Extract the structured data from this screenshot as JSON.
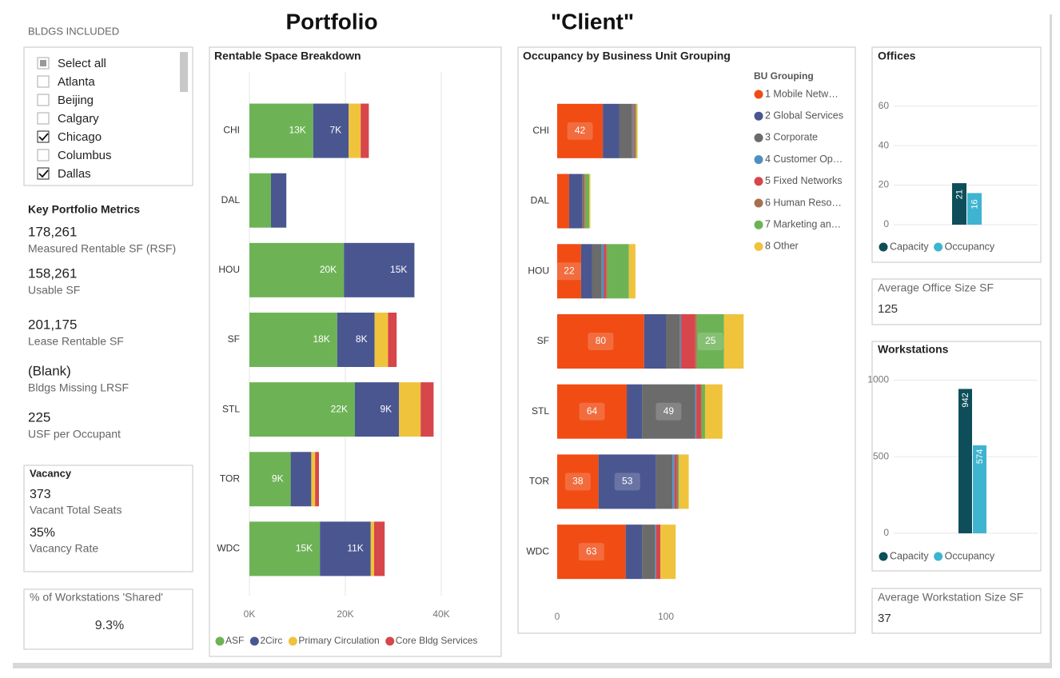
{
  "header": {
    "title_left": "Portfolio",
    "title_right": "\"Client\""
  },
  "slicer": {
    "title": "BLDGS INCLUDED",
    "items": [
      {
        "label": "Select all",
        "checked": "mixed"
      },
      {
        "label": "Atlanta",
        "checked": false
      },
      {
        "label": "Beijing",
        "checked": false
      },
      {
        "label": "Calgary",
        "checked": false
      },
      {
        "label": "Chicago",
        "checked": true
      },
      {
        "label": "Columbus",
        "checked": false
      },
      {
        "label": "Dallas",
        "checked": true
      }
    ]
  },
  "metrics": {
    "title": "Key Portfolio Metrics",
    "items": [
      {
        "value": "178,261",
        "label": "Measured Rentable SF (RSF)"
      },
      {
        "value": "158,261",
        "label": "Usable SF"
      },
      {
        "value": "201,175",
        "label": "Lease Rentable SF"
      },
      {
        "value": "(Blank)",
        "label": "Bldgs Missing LRSF"
      },
      {
        "value": "225",
        "label": "USF per Occupant"
      }
    ]
  },
  "vacancy": {
    "title": "Vacancy",
    "items": [
      {
        "value": "373",
        "label": "Vacant Total Seats"
      },
      {
        "value": "35%",
        "label": "Vacancy Rate"
      }
    ]
  },
  "shared": {
    "title": "% of Workstations 'Shared'",
    "value": "9.3%"
  },
  "cards": [
    {
      "title": "Average Office Size SF",
      "value": "125"
    },
    {
      "title": "Average Workstation Size SF",
      "value": "37"
    }
  ],
  "chart_data": [
    {
      "type": "bar",
      "orientation": "horizontal",
      "stacked": true,
      "title": "Rentable Space Breakdown",
      "categories": [
        "CHI",
        "DAL",
        "HOU",
        "SF",
        "STL",
        "TOR",
        "WDC"
      ],
      "series": [
        {
          "name": "ASF",
          "color": "#6db356",
          "values": [
            13300,
            4500,
            19700,
            18300,
            22000,
            8600,
            14700
          ],
          "value_labels": [
            "13K",
            null,
            "20K",
            "18K",
            "22K",
            "9K",
            "15K"
          ]
        },
        {
          "name": "2Circ",
          "color": "#4a5690",
          "values": [
            7400,
            3200,
            14700,
            7800,
            9200,
            4300,
            10600
          ],
          "value_labels": [
            "7K",
            null,
            "15K",
            "8K",
            "9K",
            null,
            "11K"
          ]
        },
        {
          "name": "Primary Circulation",
          "color": "#f0c33c",
          "values": [
            2500,
            0,
            0,
            2800,
            4500,
            800,
            700
          ]
        },
        {
          "name": "Core Bldg Services",
          "color": "#d6464a",
          "values": [
            1700,
            0,
            0,
            1800,
            2700,
            800,
            2200
          ]
        }
      ],
      "xlim": [
        0,
        49000
      ],
      "xticks": [
        {
          "value": 0,
          "label": "0K"
        },
        {
          "value": 20000,
          "label": "20K"
        },
        {
          "value": 40000,
          "label": "40K"
        }
      ],
      "grid": true,
      "legend": "bottom"
    },
    {
      "type": "bar",
      "orientation": "horizontal",
      "stacked": true,
      "title": "Occupancy by Business Unit Grouping",
      "legend_title": "BU Grouping",
      "categories": [
        "CHI",
        "DAL",
        "HOU",
        "SF",
        "STL",
        "TOR",
        "WDC"
      ],
      "series": [
        {
          "name": "1 Mobile Netw…",
          "color": "#f04c14",
          "values": [
            42,
            11,
            22,
            80,
            64,
            38,
            63
          ],
          "value_labels": [
            "42",
            null,
            "22",
            "80",
            "64",
            "38",
            "63"
          ]
        },
        {
          "name": "2 Global Services",
          "color": "#4a5690",
          "values": [
            15,
            12,
            10,
            20,
            14,
            53,
            15
          ],
          "value_labels": [
            null,
            null,
            null,
            null,
            null,
            "53",
            null
          ]
        },
        {
          "name": "3 Corporate",
          "color": "#6b6b6b",
          "values": [
            12,
            1.5,
            9,
            13,
            49,
            15,
            12
          ],
          "value_labels": [
            null,
            null,
            null,
            null,
            "49",
            null,
            null
          ]
        },
        {
          "name": "4 Customer Op…",
          "color": "#4f8fc0",
          "values": [
            1,
            0,
            2,
            1,
            1,
            2,
            1
          ]
        },
        {
          "name": "5 Fixed Networks",
          "color": "#d6464a",
          "values": [
            1,
            1,
            2,
            13,
            4,
            2,
            4
          ]
        },
        {
          "name": "6 Human Reso…",
          "color": "#a86f4c",
          "values": [
            1,
            0,
            1,
            1.5,
            1,
            1,
            0
          ]
        },
        {
          "name": "7 Marketing an…",
          "color": "#6db356",
          "values": [
            1,
            4,
            20,
            25,
            3,
            1,
            0
          ],
          "value_labels": [
            null,
            null,
            null,
            "25",
            null,
            null,
            null
          ]
        },
        {
          "name": "8 Other",
          "color": "#f0c33c",
          "values": [
            1,
            1,
            6,
            18,
            16,
            9,
            14
          ]
        }
      ],
      "xlim": [
        0,
        200
      ],
      "xticks": [
        0,
        100
      ],
      "grid": false,
      "legend": "top-right"
    },
    {
      "type": "bar",
      "orientation": "vertical",
      "title": "Offices",
      "categories": [
        null
      ],
      "series": [
        {
          "name": "Capacity",
          "color": "#0d4e5a",
          "values": [
            21
          ]
        },
        {
          "name": "Occupancy",
          "color": "#3fb4d1",
          "values": [
            16
          ]
        }
      ],
      "ylim": [
        0,
        70
      ],
      "yticks": [
        0,
        20,
        40,
        60
      ],
      "grid": true,
      "legend": "bottom",
      "data_labels": true
    },
    {
      "type": "bar",
      "orientation": "vertical",
      "title": "Workstations",
      "categories": [
        null
      ],
      "series": [
        {
          "name": "Capacity",
          "color": "#0d4e5a",
          "values": [
            942
          ]
        },
        {
          "name": "Occupancy",
          "color": "#3fb4d1",
          "values": [
            574
          ]
        }
      ],
      "ylim": [
        0,
        1080
      ],
      "yticks": [
        0,
        500,
        1000
      ],
      "grid": true,
      "legend": "bottom",
      "data_labels": true
    }
  ]
}
